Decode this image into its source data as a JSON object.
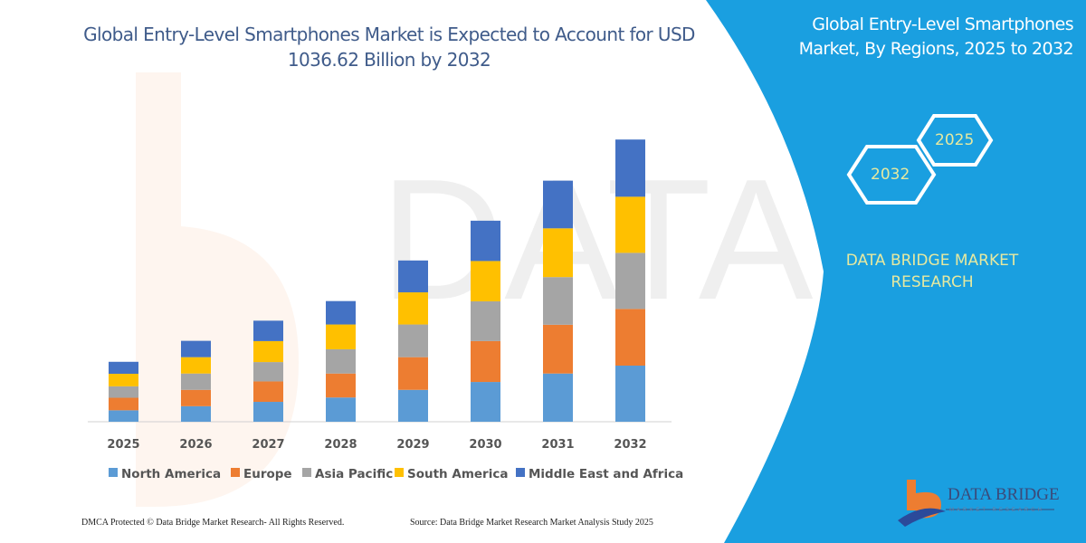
{
  "title": "Global Entry-Level Smartphones Market is Expected to Account for USD 1036.62 Billion by 2032",
  "side_panel": {
    "title": "Global Entry-Level Smartphones Market, By Regions, 2025 to 2032",
    "hex_years": [
      "2025",
      "2032"
    ],
    "brand": "DATA BRIDGE MARKET RESEARCH",
    "logo_text": "DATA BRIDGE",
    "logo_sub": "MARKET RESEARCH",
    "accent_color": "#1a9fe0"
  },
  "footer": {
    "left": "DMCA Protected © Data Bridge Market Research-  All Rights Reserved.",
    "right": "Source: Data Bridge Market Research  Market Analysis Study 2025"
  },
  "chart_data": {
    "type": "bar",
    "stacked": true,
    "title": "Global Entry-Level Smartphones Market is Expected to Account for USD 1036.62 Billion by 2032",
    "xlabel": "",
    "ylabel": "",
    "ylim": [
      0,
      1040
    ],
    "grid": false,
    "legend": "bottom",
    "categories": [
      "2025",
      "2026",
      "2027",
      "2028",
      "2029",
      "2030",
      "2031",
      "2032"
    ],
    "series": [
      {
        "name": "North America",
        "color": "#5b9bd5",
        "values": [
          42,
          57,
          73,
          89,
          117,
          146,
          177,
          206
        ]
      },
      {
        "name": "Europe",
        "color": "#ed7d31",
        "values": [
          46,
          60,
          75,
          88,
          120,
          150,
          179,
          208
        ]
      },
      {
        "name": "Asia Pacific",
        "color": "#a5a5a5",
        "values": [
          42,
          60,
          71,
          89,
          120,
          146,
          175,
          206
        ]
      },
      {
        "name": "South America",
        "color": "#ffc000",
        "values": [
          46,
          60,
          77,
          91,
          118,
          148,
          179,
          206
        ]
      },
      {
        "name": "Middle East and Africa",
        "color": "#4472c4",
        "values": [
          44,
          60,
          75,
          86,
          117,
          148,
          175,
          210
        ]
      }
    ]
  }
}
